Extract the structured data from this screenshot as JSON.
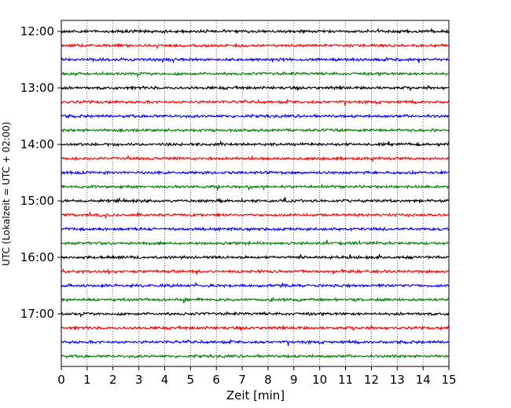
{
  "chart_data": {
    "type": "line",
    "title": "",
    "xlabel": "Zeit  [min]",
    "ylabel": "UTC (Lokalzeit = UTC + 02:00)",
    "xlim": [
      0,
      15
    ],
    "x_ticks": [
      "0",
      "1",
      "2",
      "3",
      "4",
      "5",
      "6",
      "7",
      "8",
      "9",
      "10",
      "11",
      "12",
      "13",
      "14",
      "15"
    ],
    "y_ticks": [
      "12:00",
      "13:00",
      "14:00",
      "15:00",
      "16:00",
      "17:00"
    ],
    "grid": "vertical dotted at each minute",
    "trace_interval_min": 15,
    "trace_start_times": [
      "12:00",
      "12:15",
      "12:30",
      "12:45",
      "13:00",
      "13:15",
      "13:30",
      "13:45",
      "14:00",
      "14:15",
      "14:30",
      "14:45",
      "15:00",
      "15:15",
      "15:30",
      "15:45",
      "16:00",
      "16:15",
      "16:30",
      "16:45",
      "17:00",
      "17:15",
      "17:30",
      "17:45"
    ],
    "trace_color_cycle": [
      "#000000",
      "#ff0000",
      "#0000ff",
      "#008000"
    ]
  }
}
